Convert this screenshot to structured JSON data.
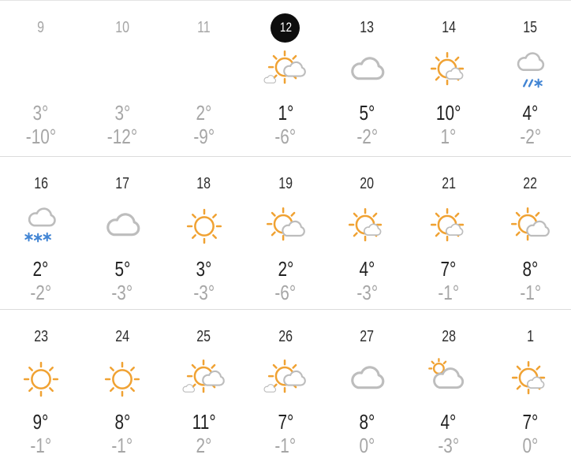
{
  "calendar": {
    "title": "month-weather-calendar",
    "today_day": "12",
    "colors": {
      "sun_orange": "#f0a233",
      "cloud_gray": "#bdbdbd",
      "precip_blue": "#4285d4",
      "today_badge_bg": "#0d0d0d",
      "today_badge_text": "#ffffff",
      "text_dark": "#222222",
      "text_muted": "#a6a6a6",
      "divider": "#dcdcdc"
    },
    "rows": [
      {
        "days": [
          {
            "day": "9",
            "state": "past",
            "icon": "none",
            "high": "3°",
            "low": "-10°"
          },
          {
            "day": "10",
            "state": "past",
            "icon": "none",
            "high": "3°",
            "low": "-12°"
          },
          {
            "day": "11",
            "state": "past",
            "icon": "none",
            "high": "2°",
            "low": "-9°"
          },
          {
            "day": "12",
            "state": "today",
            "icon": "partly-cloudy",
            "high": "1°",
            "low": "-6°"
          },
          {
            "day": "13",
            "state": "future",
            "icon": "cloudy",
            "high": "5°",
            "low": "-2°"
          },
          {
            "day": "14",
            "state": "future",
            "icon": "mostly-sunny",
            "high": "10°",
            "low": "1°"
          },
          {
            "day": "15",
            "state": "future",
            "icon": "sleet",
            "high": "4°",
            "low": "-2°"
          }
        ]
      },
      {
        "days": [
          {
            "day": "16",
            "state": "future",
            "icon": "snow",
            "high": "2°",
            "low": "-2°"
          },
          {
            "day": "17",
            "state": "future",
            "icon": "cloudy",
            "high": "5°",
            "low": "-3°"
          },
          {
            "day": "18",
            "state": "future",
            "icon": "sunny",
            "high": "3°",
            "low": "-3°"
          },
          {
            "day": "19",
            "state": "future",
            "icon": "partly-sunny",
            "high": "2°",
            "low": "-6°"
          },
          {
            "day": "20",
            "state": "future",
            "icon": "mostly-sunny",
            "high": "4°",
            "low": "-3°"
          },
          {
            "day": "21",
            "state": "future",
            "icon": "mostly-sunny",
            "high": "7°",
            "low": "-1°"
          },
          {
            "day": "22",
            "state": "future",
            "icon": "partly-sunny",
            "high": "8°",
            "low": "-1°"
          }
        ]
      },
      {
        "days": [
          {
            "day": "23",
            "state": "future",
            "icon": "sunny",
            "high": "9°",
            "low": "-1°"
          },
          {
            "day": "24",
            "state": "future",
            "icon": "sunny",
            "high": "8°",
            "low": "-1°"
          },
          {
            "day": "25",
            "state": "future",
            "icon": "partly-cloudy",
            "high": "11°",
            "low": "2°"
          },
          {
            "day": "26",
            "state": "future",
            "icon": "partly-cloudy",
            "high": "7°",
            "low": "-1°"
          },
          {
            "day": "27",
            "state": "future",
            "icon": "cloudy",
            "high": "8°",
            "low": "0°"
          },
          {
            "day": "28",
            "state": "future",
            "icon": "mostly-cloudy",
            "high": "4°",
            "low": "-3°"
          },
          {
            "day": "1",
            "state": "future",
            "icon": "mostly-sunny",
            "high": "7°",
            "low": "0°"
          }
        ]
      }
    ]
  }
}
